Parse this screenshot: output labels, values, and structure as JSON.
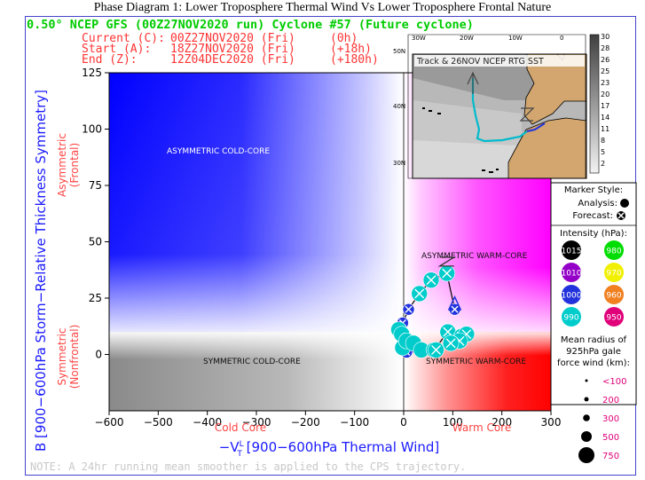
{
  "page_title": "Phase Diagram 1: Lower Troposphere Thermal Wind Vs Lower Troposphere Frontal Nature",
  "header": {
    "line1": "0.50° NCEP GFS (00Z27NOV2020 run) Cyclone #57 (Future cyclone)",
    "rows": [
      {
        "label": "Current (C):",
        "time": "00Z27NOV2020 (Fri)",
        "offset": "(0h)"
      },
      {
        "label": "Start (A):",
        "time": "18Z27NOV2020 (Fri)",
        "offset": "(+18h)"
      },
      {
        "label": "End (Z):",
        "time": "12Z04DEC2020 (Fri)",
        "offset": "(+180h)"
      }
    ]
  },
  "quadrants": {
    "tl": "ASYMMETRIC COLD-CORE",
    "tr": "ASYMMETRIC WARM-CORE",
    "bl": "SYMMETRIC COLD-CORE",
    "br": "SYMMETRIC WARM-CORE"
  },
  "side_labels": {
    "asym1": "Asymmetric",
    "asym2": "(Frontal)",
    "sym1": "Symmetric",
    "sym2": "(Nonfrontal)",
    "cold": "Cold Core",
    "warm": "Warm Core"
  },
  "axes": {
    "ylabel": "B [900−600hPa Storm−Relative Thickness Symmetry]",
    "xlabel_prefix": "−V",
    "xlabel_rest": " [900−600hPa Thermal Wind]"
  },
  "map": {
    "title": "Track & 26NOV NCEP RTG SST",
    "lon_labels": [
      "30W",
      "20W",
      "10W",
      "0"
    ],
    "lat_labels": [
      "50N",
      "40N",
      "30N"
    ],
    "sst_labels": [
      "30",
      "28",
      "26",
      "25",
      "23",
      "20",
      "17",
      "14",
      "11",
      "8",
      "5",
      "2"
    ]
  },
  "legend": {
    "marker_title": "Marker Style:",
    "analysis": "Analysis:",
    "forecast": "Forecast:",
    "intensity_title": "Intensity (hPa):",
    "intensities": [
      {
        "value": "1015",
        "color": "#000000"
      },
      {
        "value": "980",
        "color": "#00dd00"
      },
      {
        "value": "1010",
        "color": "#9400c8"
      },
      {
        "value": "970",
        "color": "#f0f000"
      },
      {
        "value": "1000",
        "color": "#2233dd"
      },
      {
        "value": "960",
        "color": "#f08020"
      },
      {
        "value": "990",
        "color": "#00cccc"
      },
      {
        "value": "950",
        "color": "#e0007a"
      }
    ],
    "radius_title_1": "Mean radius of",
    "radius_title_2": "925hPa gale",
    "radius_title_3": "force wind (km):",
    "radii": [
      "<100",
      "200",
      "300",
      "500",
      "750"
    ]
  },
  "note": "NOTE:  A 24hr running mean smoother is applied to the CPS trajectory.",
  "chart_data": {
    "type": "scatter",
    "title": "Phase Diagram 1: Lower Troposphere Thermal Wind Vs Lower Troposphere Frontal Nature",
    "xlabel": "−VTL [900−600hPa Thermal Wind]",
    "ylabel": "B [900−600hPa Storm−Relative Thickness Symmetry]",
    "xlim": [
      -600,
      300
    ],
    "ylim": [
      -25,
      125
    ],
    "x_ticks": [
      -600,
      -500,
      -400,
      -300,
      -200,
      -100,
      0,
      100,
      200,
      300
    ],
    "y_ticks": [
      0,
      25,
      50,
      75,
      100,
      125
    ],
    "grid": false,
    "colors": {
      "cold_asym": "#0000ff",
      "warm_asym": "#ff00ff",
      "cold_sym": "#808080",
      "warm_sym": "#ff0000",
      "axis": "#0000ff",
      "accent": "#00cc00"
    },
    "track": [
      {
        "x": 104,
        "y": 20,
        "color": "#2233dd",
        "marker": "forecast",
        "label": "A"
      },
      {
        "x": 88,
        "y": 36,
        "color": "#00cccc",
        "marker": "forecast"
      },
      {
        "x": 56,
        "y": 33,
        "color": "#00cccc",
        "marker": "forecast"
      },
      {
        "x": 32,
        "y": 27,
        "color": "#00cccc",
        "marker": "forecast"
      },
      {
        "x": 10,
        "y": 20,
        "color": "#2233dd",
        "marker": "forecast"
      },
      {
        "x": -2,
        "y": 14,
        "color": "#2233dd",
        "marker": "forecast"
      },
      {
        "x": -10,
        "y": 11,
        "color": "#00cccc",
        "marker": "analysis"
      },
      {
        "x": -4,
        "y": 9,
        "color": "#00cccc",
        "marker": "analysis"
      },
      {
        "x": 4,
        "y": 7,
        "color": "#2233dd",
        "marker": "forecast"
      },
      {
        "x": 10,
        "y": 5,
        "color": "#2233dd",
        "marker": "forecast"
      },
      {
        "x": 14,
        "y": 3,
        "color": "#9400c8",
        "marker": "forecast"
      },
      {
        "x": 6,
        "y": 1,
        "color": "#2233dd",
        "marker": "forecast"
      },
      {
        "x": -2,
        "y": 3,
        "color": "#00cccc",
        "marker": "analysis"
      },
      {
        "x": 6,
        "y": 6,
        "color": "#00cccc",
        "marker": "analysis"
      },
      {
        "x": 20,
        "y": 5,
        "color": "#00cccc",
        "marker": "analysis"
      },
      {
        "x": 36,
        "y": 2,
        "color": "#00cccc",
        "marker": "analysis"
      },
      {
        "x": 62,
        "y": 2,
        "color": "#00cccc",
        "marker": "analysis"
      },
      {
        "x": 90,
        "y": 10,
        "color": "#00cccc",
        "marker": "forecast"
      },
      {
        "x": 118,
        "y": 8,
        "color": "#00cccc",
        "marker": "forecast"
      },
      {
        "x": 128,
        "y": 9,
        "color": "#00cccc",
        "marker": "forecast"
      },
      {
        "x": 114,
        "y": 6,
        "color": "#00cccc",
        "marker": "forecast"
      },
      {
        "x": 96,
        "y": 5,
        "color": "#00cccc",
        "marker": "forecast"
      },
      {
        "x": 66,
        "y": 2,
        "color": "#00cccc",
        "marker": "forecast",
        "label": "Z"
      }
    ],
    "start_marker": {
      "x": 104,
      "y": 20,
      "label": "A"
    },
    "end_marker": {
      "x": 66,
      "y": 2,
      "label": "Z"
    },
    "current_marker": {
      "x": 88,
      "y": 40,
      "label": "Z"
    }
  }
}
